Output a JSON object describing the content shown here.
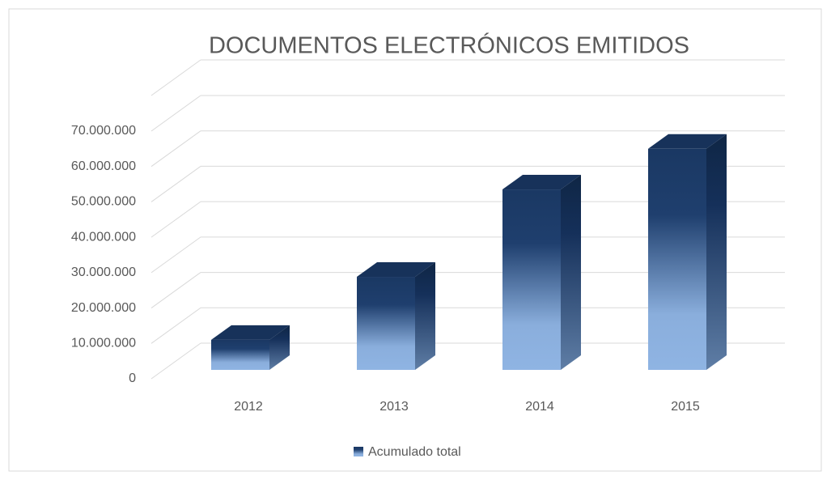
{
  "chart_data": {
    "type": "bar3d",
    "title": "DOCUMENTOS ELECTRÓNICOS EMITIDOS",
    "categories": [
      "2012",
      "2013",
      "2014",
      "2015"
    ],
    "series": [
      {
        "name": "Acumulado total",
        "color": "#1f3f6e",
        "values": [
          8500000,
          26300000,
          51000000,
          62500000
        ]
      }
    ],
    "ylim": [
      0,
      70000000
    ],
    "yticks": [
      0,
      {
        "value": 10000000,
        "label": "10.000.000"
      },
      {
        "value": 20000000,
        "label": "20.000.000"
      },
      {
        "value": 30000000,
        "label": "30.000.000"
      },
      {
        "value": 40000000,
        "label": "40.000.000"
      },
      {
        "value": 50000000,
        "label": "50.000.000"
      },
      {
        "value": 60000000,
        "label": "60.000.000"
      },
      {
        "value": 70000000,
        "label": "70.000.000"
      }
    ],
    "grid": true,
    "legend": "bottom"
  }
}
